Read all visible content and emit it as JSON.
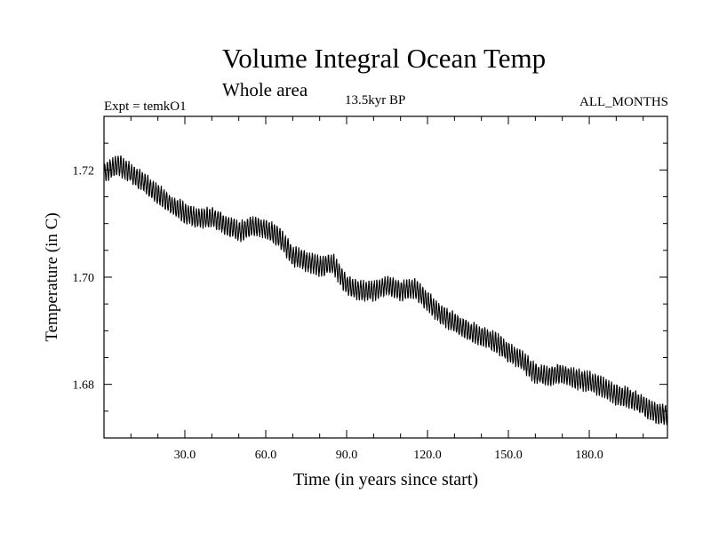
{
  "header": {
    "title": "Volume Integral Ocean Temp",
    "subtitle": "Whole area",
    "experiment": "Expt = temkO1",
    "period": "13.5kyr BP",
    "months": "ALL_MONTHS"
  },
  "chart_data": {
    "type": "line",
    "title": "Volume Integral Ocean Temp",
    "subtitle": "Whole area",
    "xlabel": "Time (in years since start)",
    "ylabel": "Temperature (in C)",
    "xlim": [
      0,
      209
    ],
    "ylim": [
      1.67,
      1.73
    ],
    "x_ticks": [
      30,
      60,
      90,
      120,
      150,
      180
    ],
    "x_tick_labels": [
      "30.0",
      "60.0",
      "90.0",
      "120.0",
      "150.0",
      "180.0"
    ],
    "y_ticks": [
      1.68,
      1.7,
      1.72
    ],
    "y_tick_labels": [
      "1.68",
      "1.70",
      "1.72"
    ],
    "grid": false,
    "line_color": "#000000",
    "seasonal_amplitude": 0.0017,
    "trend": {
      "x": [
        0,
        5,
        10,
        15,
        20,
        25,
        30,
        35,
        40,
        45,
        50,
        55,
        60,
        65,
        70,
        75,
        80,
        85,
        90,
        95,
        100,
        105,
        110,
        115,
        120,
        125,
        130,
        135,
        140,
        145,
        150,
        155,
        160,
        165,
        170,
        175,
        180,
        185,
        190,
        195,
        200,
        205,
        209
      ],
      "y": [
        1.7195,
        1.721,
        1.7195,
        1.7175,
        1.7155,
        1.7135,
        1.712,
        1.711,
        1.7112,
        1.7098,
        1.7085,
        1.7095,
        1.709,
        1.7075,
        1.704,
        1.703,
        1.702,
        1.7025,
        1.6985,
        1.6975,
        1.6975,
        1.6985,
        1.6975,
        1.698,
        1.6955,
        1.693,
        1.6915,
        1.69,
        1.689,
        1.688,
        1.686,
        1.6845,
        1.682,
        1.6815,
        1.682,
        1.681,
        1.6805,
        1.6795,
        1.678,
        1.6775,
        1.676,
        1.6745,
        1.6745
      ]
    }
  }
}
